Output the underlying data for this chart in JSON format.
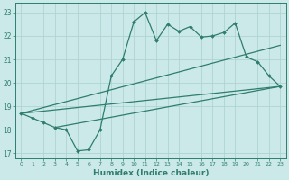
{
  "title": "",
  "xlabel": "Humidex (Indice chaleur)",
  "ylabel": "",
  "bg_color": "#cce9e9",
  "grid_color": "#afd4d4",
  "line_color": "#2e7d6e",
  "xlim": [
    -0.5,
    23.5
  ],
  "ylim": [
    16.8,
    23.4
  ],
  "xticks": [
    0,
    1,
    2,
    3,
    4,
    5,
    6,
    7,
    8,
    9,
    10,
    11,
    12,
    13,
    14,
    15,
    16,
    17,
    18,
    19,
    20,
    21,
    22,
    23
  ],
  "yticks": [
    17,
    18,
    19,
    20,
    21,
    22,
    23
  ],
  "jagged_x": [
    0,
    1,
    2,
    3,
    4,
    5,
    6,
    7,
    8,
    9,
    10,
    11,
    12,
    13,
    14,
    15,
    16,
    17,
    18,
    19,
    20,
    21,
    22,
    23
  ],
  "jagged_y": [
    18.7,
    18.5,
    18.3,
    18.1,
    18.0,
    17.1,
    17.15,
    18.0,
    20.3,
    21.0,
    22.6,
    23.0,
    21.8,
    22.5,
    22.2,
    22.4,
    21.95,
    22.0,
    22.15,
    22.55,
    21.1,
    20.9,
    20.3,
    19.85
  ],
  "trend1_x": [
    0,
    23
  ],
  "trend1_y": [
    18.7,
    21.6
  ],
  "trend2_x": [
    0,
    23
  ],
  "trend2_y": [
    18.7,
    19.85
  ],
  "trend3_x": [
    3,
    23
  ],
  "trend3_y": [
    18.1,
    19.85
  ]
}
